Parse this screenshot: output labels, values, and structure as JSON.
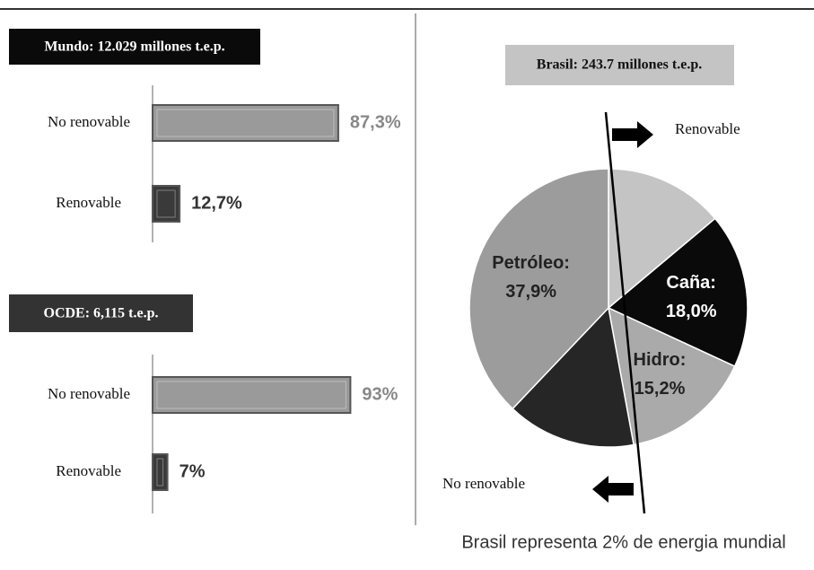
{
  "chart_data": [
    {
      "type": "bar",
      "title": "Mundo: 12.029 millones t.e.p.",
      "categories": [
        "No renovable",
        "Renovable"
      ],
      "values": [
        87.3,
        12.7
      ],
      "value_labels": [
        "87,3%",
        "12,7%"
      ],
      "colors": [
        "#9a9a9a",
        "#3a3a3a"
      ]
    },
    {
      "type": "bar",
      "title": "OCDE: 6,115 t.e.p.",
      "categories": [
        "No renovable",
        "Renovable"
      ],
      "values": [
        93,
        7
      ],
      "value_labels": [
        "93%",
        "7%"
      ],
      "colors": [
        "#9a9a9a",
        "#3a3a3a"
      ]
    },
    {
      "type": "pie",
      "title": "Brasil: 243.7 millones t.e.p.",
      "categories": [
        null,
        "Caña:",
        "Hidro:",
        null,
        "Petróleo:"
      ],
      "values": [
        13.9,
        18.0,
        15.2,
        15.0,
        37.9
      ],
      "value_labels": [
        null,
        "18,0%",
        "15,2%",
        null,
        "37,9%"
      ],
      "colors": [
        "#c4c4c4",
        "#0a0a0a",
        "#aaaaaa",
        "#262626",
        "#9c9c9c"
      ],
      "annotations": [
        "Renovable",
        "No renovable",
        "Brasil representa 2% de energia mundial"
      ]
    }
  ]
}
